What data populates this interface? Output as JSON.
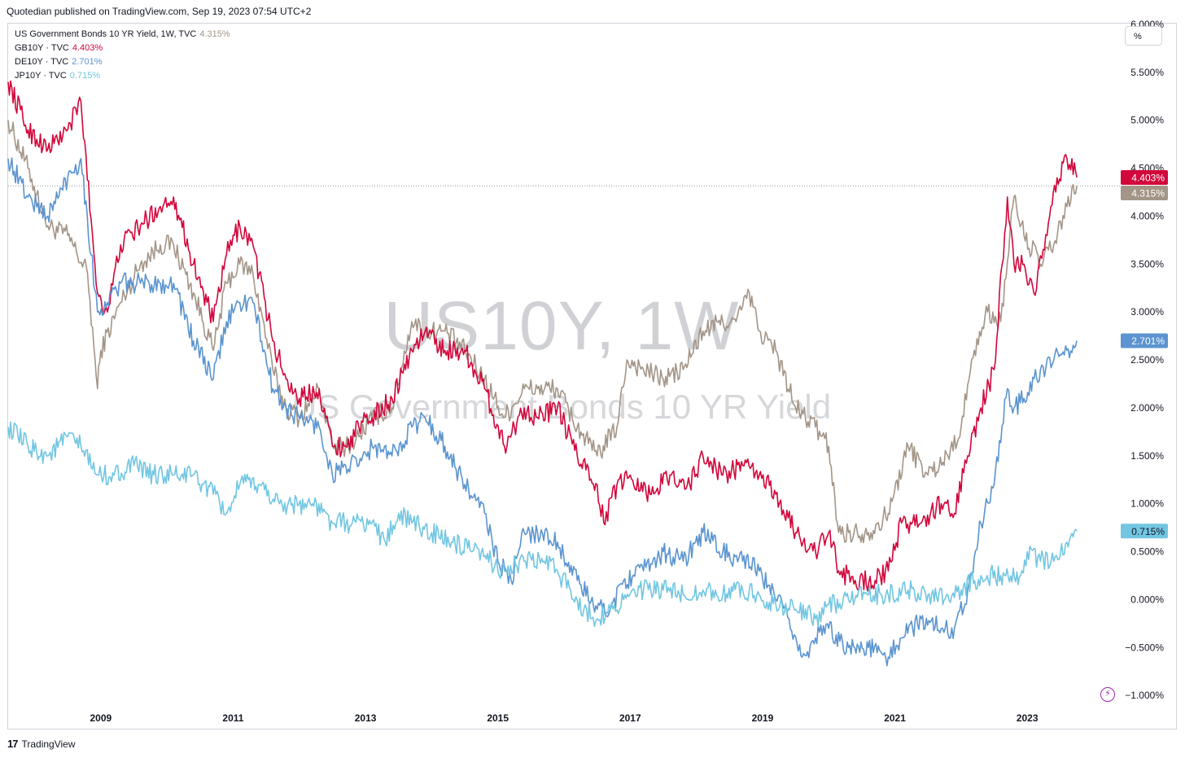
{
  "header": {
    "publisher": "Quotedian published on TradingView.com, Sep 19, 2023 07:54 UTC+2"
  },
  "legend": [
    {
      "name": "US Government Bonds 10 YR Yield, 1W, TVC",
      "value": "4.315%",
      "color": "#a39587"
    },
    {
      "name": "GB10Y · TVC",
      "value": "4.403%",
      "color": "#d2073b"
    },
    {
      "name": "DE10Y · TVC",
      "value": "2.701%",
      "color": "#5b94d0"
    },
    {
      "name": "JP10Y · TVC",
      "value": "0.715%",
      "color": "#72c6e2"
    }
  ],
  "scale_button": "%",
  "watermark": {
    "symbol": "US10Y, 1W",
    "description": "US Government Bonds 10 YR Yield"
  },
  "footer": {
    "brand_logo": "17",
    "brand": "TradingView"
  },
  "chart_data": {
    "type": "line",
    "title": "US Government Bonds 10 YR Yield, 1W, TVC",
    "xlabel": "",
    "ylabel": "",
    "xlim": [
      2007.6,
      2024.4
    ],
    "ylim": [
      -1.1,
      6.0
    ],
    "y_ticks": [
      6.0,
      5.5,
      5.0,
      4.5,
      4.0,
      3.5,
      3.0,
      2.5,
      2.0,
      1.5,
      1.0,
      0.5,
      0.0,
      -0.5,
      -1.0
    ],
    "y_tick_labels": [
      "6.000%",
      "5.500%",
      "5.000%",
      "4.500%",
      "4.000%",
      "3.500%",
      "3.000%",
      "2.500%",
      "2.000%",
      "1.500%",
      "1.000%",
      "0.500%",
      "0.000%",
      "−0.500%",
      "−1.000%"
    ],
    "x_ticks": [
      2009,
      2011,
      2013,
      2015,
      2017,
      2019,
      2021,
      2023
    ],
    "x_tick_labels": [
      "2009",
      "2011",
      "2013",
      "2015",
      "2017",
      "2019",
      "2021",
      "2023"
    ],
    "reference_line": 4.315,
    "price_labels": [
      {
        "value": 4.403,
        "text": "4.403%",
        "color": "#d2073b"
      },
      {
        "value": 4.315,
        "text": "4.315%",
        "color": "#a39587"
      },
      {
        "value": 2.701,
        "text": "2.701%",
        "color": "#5b94d0"
      },
      {
        "value": 0.715,
        "text": "0.715%",
        "color": "#72c6e2"
      }
    ],
    "series": [
      {
        "name": "US10Y",
        "color": "#a39587",
        "x": [
          2007.6,
          2007.9,
          2008.2,
          2008.5,
          2008.8,
          2008.95,
          2009.0,
          2009.3,
          2009.6,
          2009.9,
          2010.1,
          2010.4,
          2010.7,
          2010.9,
          2011.1,
          2011.3,
          2011.6,
          2011.8,
          2012.0,
          2012.3,
          2012.5,
          2012.7,
          2012.9,
          2013.1,
          2013.4,
          2013.7,
          2013.9,
          2014.2,
          2014.5,
          2014.8,
          2015.1,
          2015.4,
          2015.6,
          2015.9,
          2016.2,
          2016.5,
          2016.8,
          2016.95,
          2017.2,
          2017.5,
          2017.8,
          2018.1,
          2018.4,
          2018.6,
          2018.8,
          2018.95,
          2019.2,
          2019.5,
          2019.8,
          2020.0,
          2020.15,
          2020.3,
          2020.6,
          2020.9,
          2021.2,
          2021.5,
          2021.8,
          2022.0,
          2022.2,
          2022.4,
          2022.6,
          2022.8,
          2022.95,
          2023.2,
          2023.4,
          2023.6,
          2023.75
        ],
        "y": [
          5.0,
          4.5,
          3.9,
          3.8,
          3.4,
          2.2,
          2.6,
          3.1,
          3.5,
          3.7,
          3.7,
          3.2,
          2.6,
          3.3,
          3.5,
          3.4,
          2.4,
          2.0,
          1.9,
          2.2,
          1.6,
          1.6,
          1.7,
          1.9,
          2.0,
          2.9,
          2.8,
          2.8,
          2.6,
          2.3,
          1.9,
          2.2,
          2.2,
          2.2,
          1.8,
          1.5,
          1.8,
          2.5,
          2.4,
          2.3,
          2.4,
          2.8,
          2.9,
          2.9,
          3.2,
          2.8,
          2.6,
          2.0,
          1.8,
          1.6,
          0.7,
          0.7,
          0.7,
          0.9,
          1.6,
          1.3,
          1.5,
          1.8,
          2.6,
          3.0,
          2.9,
          4.2,
          3.8,
          3.5,
          3.7,
          4.1,
          4.315
        ]
      },
      {
        "name": "GB10Y",
        "color": "#d2073b",
        "x": [
          2007.6,
          2007.9,
          2008.2,
          2008.5,
          2008.7,
          2008.95,
          2009.1,
          2009.3,
          2009.6,
          2009.9,
          2010.1,
          2010.4,
          2010.7,
          2010.9,
          2011.1,
          2011.3,
          2011.6,
          2011.8,
          2012.0,
          2012.3,
          2012.5,
          2012.7,
          2012.9,
          2013.1,
          2013.4,
          2013.7,
          2013.9,
          2014.2,
          2014.5,
          2014.8,
          2015.1,
          2015.4,
          2015.6,
          2015.9,
          2016.2,
          2016.5,
          2016.6,
          2016.8,
          2017.0,
          2017.3,
          2017.6,
          2017.9,
          2018.1,
          2018.4,
          2018.7,
          2018.95,
          2019.2,
          2019.5,
          2019.8,
          2020.0,
          2020.15,
          2020.4,
          2020.7,
          2020.9,
          2021.1,
          2021.4,
          2021.7,
          2021.9,
          2022.1,
          2022.3,
          2022.5,
          2022.7,
          2022.8,
          2022.95,
          2023.1,
          2023.3,
          2023.45,
          2023.6,
          2023.75
        ],
        "y": [
          5.4,
          4.9,
          4.7,
          4.9,
          5.2,
          3.2,
          3.0,
          3.7,
          3.9,
          4.1,
          4.2,
          3.5,
          2.9,
          3.6,
          3.9,
          3.7,
          2.7,
          2.3,
          2.1,
          2.2,
          1.6,
          1.6,
          1.8,
          1.9,
          2.1,
          2.6,
          2.8,
          2.6,
          2.6,
          2.2,
          1.6,
          2.0,
          1.9,
          2.0,
          1.5,
          1.2,
          0.8,
          1.2,
          1.3,
          1.1,
          1.3,
          1.2,
          1.5,
          1.3,
          1.4,
          1.3,
          1.1,
          0.7,
          0.5,
          0.7,
          0.3,
          0.2,
          0.2,
          0.3,
          0.8,
          0.8,
          1.0,
          0.9,
          1.5,
          2.0,
          2.4,
          4.2,
          3.5,
          3.5,
          3.2,
          3.8,
          4.4,
          4.6,
          4.403
        ]
      },
      {
        "name": "DE10Y",
        "color": "#5b94d0",
        "x": [
          2007.6,
          2007.9,
          2008.2,
          2008.5,
          2008.7,
          2008.95,
          2009.1,
          2009.3,
          2009.6,
          2009.9,
          2010.1,
          2010.4,
          2010.7,
          2010.9,
          2011.1,
          2011.3,
          2011.6,
          2011.8,
          2012.0,
          2012.3,
          2012.5,
          2012.7,
          2012.9,
          2013.1,
          2013.4,
          2013.7,
          2013.9,
          2014.2,
          2014.5,
          2014.8,
          2015.0,
          2015.2,
          2015.4,
          2015.6,
          2015.9,
          2016.2,
          2016.5,
          2016.7,
          2016.9,
          2017.2,
          2017.5,
          2017.8,
          2018.1,
          2018.4,
          2018.7,
          2018.95,
          2019.2,
          2019.4,
          2019.6,
          2019.8,
          2020.0,
          2020.3,
          2020.6,
          2020.9,
          2021.1,
          2021.4,
          2021.7,
          2021.9,
          2022.1,
          2022.3,
          2022.5,
          2022.7,
          2022.8,
          2022.95,
          2023.2,
          2023.4,
          2023.6,
          2023.75
        ],
        "y": [
          4.6,
          4.2,
          4.0,
          4.4,
          4.6,
          3.0,
          3.1,
          3.3,
          3.3,
          3.3,
          3.3,
          2.7,
          2.3,
          2.9,
          3.1,
          3.1,
          2.2,
          2.0,
          1.9,
          1.8,
          1.3,
          1.4,
          1.4,
          1.6,
          1.5,
          1.8,
          1.9,
          1.6,
          1.2,
          0.9,
          0.4,
          0.2,
          0.7,
          0.7,
          0.6,
          0.2,
          -0.1,
          -0.1,
          0.2,
          0.3,
          0.5,
          0.4,
          0.7,
          0.5,
          0.4,
          0.3,
          0.0,
          -0.2,
          -0.6,
          -0.4,
          -0.3,
          -0.5,
          -0.5,
          -0.6,
          -0.4,
          -0.2,
          -0.3,
          -0.3,
          0.1,
          0.8,
          1.2,
          2.2,
          2.0,
          2.1,
          2.4,
          2.5,
          2.6,
          2.701
        ]
      },
      {
        "name": "JP10Y",
        "color": "#72c6e2",
        "x": [
          2007.6,
          2007.9,
          2008.2,
          2008.5,
          2008.7,
          2008.95,
          2009.2,
          2009.5,
          2009.8,
          2010.1,
          2010.4,
          2010.7,
          2010.9,
          2011.1,
          2011.4,
          2011.7,
          2011.9,
          2012.2,
          2012.5,
          2012.8,
          2013.1,
          2013.3,
          2013.5,
          2013.7,
          2014.0,
          2014.3,
          2014.6,
          2014.9,
          2015.1,
          2015.4,
          2015.7,
          2015.9,
          2016.1,
          2016.3,
          2016.5,
          2016.7,
          2016.9,
          2017.2,
          2017.5,
          2017.8,
          2018.1,
          2018.4,
          2018.7,
          2018.95,
          2019.2,
          2019.5,
          2019.8,
          2020.0,
          2020.3,
          2020.6,
          2020.9,
          2021.2,
          2021.5,
          2021.8,
          2022.0,
          2022.3,
          2022.6,
          2022.9,
          2023.0,
          2023.2,
          2023.4,
          2023.6,
          2023.75
        ],
        "y": [
          1.8,
          1.6,
          1.5,
          1.7,
          1.6,
          1.3,
          1.3,
          1.4,
          1.3,
          1.3,
          1.3,
          1.1,
          0.9,
          1.2,
          1.2,
          1.0,
          1.0,
          1.0,
          0.8,
          0.8,
          0.8,
          0.6,
          0.9,
          0.8,
          0.7,
          0.6,
          0.5,
          0.4,
          0.3,
          0.4,
          0.4,
          0.3,
          0.1,
          -0.1,
          -0.2,
          -0.1,
          0.0,
          0.1,
          0.1,
          0.05,
          0.1,
          0.05,
          0.1,
          0.05,
          -0.05,
          -0.1,
          -0.2,
          -0.05,
          0.0,
          0.05,
          0.05,
          0.1,
          0.05,
          0.05,
          0.1,
          0.25,
          0.25,
          0.25,
          0.5,
          0.4,
          0.4,
          0.6,
          0.715
        ]
      }
    ]
  }
}
